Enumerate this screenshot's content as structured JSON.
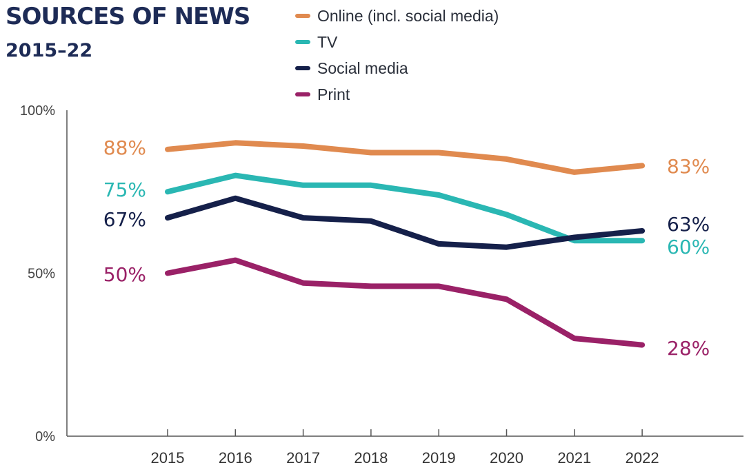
{
  "chart_data": {
    "type": "line",
    "title": "SOURCES OF NEWS",
    "subtitle": "2015–22",
    "categories": [
      "2015",
      "2016",
      "2017",
      "2018",
      "2019",
      "2020",
      "2021",
      "2022"
    ],
    "ylim": [
      0,
      100
    ],
    "yticks": [
      {
        "value": 0,
        "label": "0%"
      },
      {
        "value": 50,
        "label": "50%"
      },
      {
        "value": 100,
        "label": "100%"
      }
    ],
    "legend_position": "top",
    "grid": false,
    "series": [
      {
        "name": "Online (incl. social media)",
        "color": "#e08a4f",
        "values": [
          88,
          90,
          89,
          87,
          87,
          85,
          81,
          83
        ],
        "start_label": "88%",
        "end_label": "83%"
      },
      {
        "name": "TV",
        "color": "#2ab7b3",
        "values": [
          75,
          80,
          77,
          77,
          74,
          68,
          60,
          60
        ],
        "start_label": "75%",
        "end_label": "60%"
      },
      {
        "name": "Social media",
        "color": "#15204a",
        "values": [
          67,
          73,
          67,
          66,
          59,
          58,
          61,
          63
        ],
        "start_label": "67%",
        "end_label": "63%"
      },
      {
        "name": "Print",
        "color": "#9a2167",
        "values": [
          50,
          54,
          47,
          46,
          46,
          42,
          30,
          28
        ],
        "start_label": "50%",
        "end_label": "28%"
      }
    ]
  }
}
